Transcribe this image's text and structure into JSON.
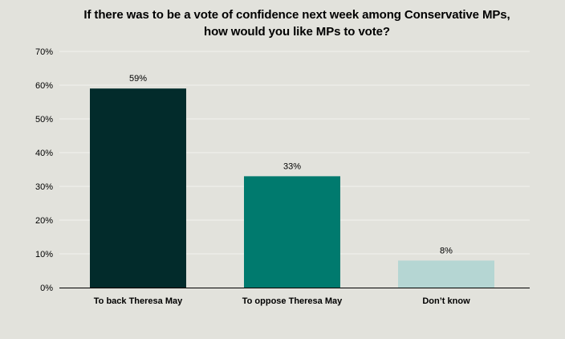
{
  "chart_data": {
    "type": "bar",
    "title_lines": [
      "If there was to be a vote of confidence next week among Conservative MPs,",
      "how would you like MPs to vote?"
    ],
    "categories": [
      "To back Theresa May",
      "To oppose Theresa May",
      "Don’t know"
    ],
    "values": [
      59,
      33,
      8
    ],
    "data_labels": [
      "59%",
      "33%",
      "8%"
    ],
    "bar_colors": [
      "#022b2b",
      "#007a6e",
      "#b5d6d3"
    ],
    "ylim": [
      0,
      70
    ],
    "yticks": [
      0,
      10,
      20,
      30,
      40,
      50,
      60,
      70
    ],
    "ytick_labels": [
      "0%",
      "10%",
      "20%",
      "30%",
      "40%",
      "50%",
      "60%",
      "70%"
    ],
    "grid": true,
    "legend": "none",
    "xlabel": "",
    "ylabel": ""
  },
  "colors": {
    "background": "#e2e2dc",
    "gridline": "#f2f2ee",
    "axis": "#000000"
  }
}
